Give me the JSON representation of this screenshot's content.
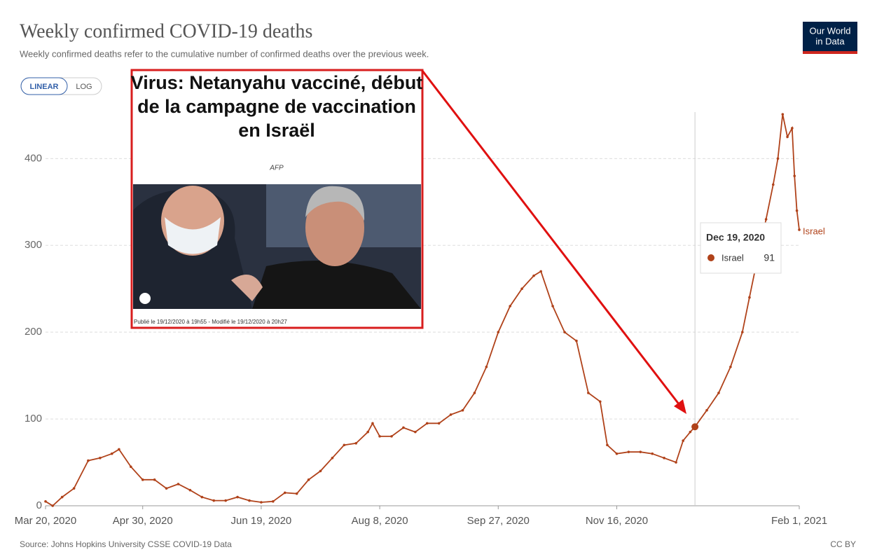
{
  "chart_data": {
    "type": "line",
    "title": "Weekly confirmed COVID-19 deaths",
    "subtitle": "Weekly confirmed deaths refer to the cumulative number of confirmed deaths over the previous week.",
    "x": [
      "2020-03-20",
      "2020-03-23",
      "2020-03-27",
      "2020-04-01",
      "2020-04-07",
      "2020-04-12",
      "2020-04-17",
      "2020-04-20",
      "2020-04-25",
      "2020-04-30",
      "2020-05-05",
      "2020-05-10",
      "2020-05-15",
      "2020-05-20",
      "2020-05-25",
      "2020-05-30",
      "2020-06-04",
      "2020-06-09",
      "2020-06-14",
      "2020-06-19",
      "2020-06-24",
      "2020-06-29",
      "2020-07-04",
      "2020-07-09",
      "2020-07-14",
      "2020-07-19",
      "2020-07-24",
      "2020-07-29",
      "2020-08-03",
      "2020-08-05",
      "2020-08-08",
      "2020-08-13",
      "2020-08-18",
      "2020-08-23",
      "2020-08-28",
      "2020-09-02",
      "2020-09-07",
      "2020-09-12",
      "2020-09-17",
      "2020-09-22",
      "2020-09-27",
      "2020-10-02",
      "2020-10-07",
      "2020-10-12",
      "2020-10-15",
      "2020-10-20",
      "2020-10-25",
      "2020-10-30",
      "2020-11-04",
      "2020-11-09",
      "2020-11-12",
      "2020-11-16",
      "2020-11-21",
      "2020-11-26",
      "2020-12-01",
      "2020-12-06",
      "2020-12-11",
      "2020-12-14",
      "2020-12-17",
      "2020-12-19",
      "2020-12-24",
      "2020-12-29",
      "2021-01-03",
      "2021-01-08",
      "2021-01-11",
      "2021-01-14",
      "2021-01-18",
      "2021-01-21",
      "2021-01-23",
      "2021-01-25",
      "2021-01-27",
      "2021-01-29",
      "2021-01-30",
      "2021-01-31",
      "2021-02-01"
    ],
    "series": [
      {
        "name": "Israel",
        "color": "#b0421a",
        "values": [
          5,
          0,
          10,
          20,
          52,
          55,
          60,
          65,
          45,
          30,
          30,
          20,
          25,
          18,
          10,
          6,
          6,
          10,
          6,
          4,
          5,
          15,
          14,
          30,
          40,
          55,
          70,
          72,
          85,
          95,
          80,
          80,
          90,
          85,
          95,
          95,
          105,
          110,
          130,
          160,
          200,
          230,
          250,
          265,
          270,
          230,
          200,
          190,
          130,
          120,
          70,
          60,
          62,
          62,
          60,
          55,
          50,
          75,
          85,
          91,
          110,
          130,
          160,
          200,
          240,
          280,
          330,
          370,
          400,
          451,
          425,
          435,
          380,
          340,
          318
        ]
      }
    ],
    "xlim": [
      "2020-03-20",
      "2021-02-01"
    ],
    "xticks": [
      {
        "value": "2020-03-20",
        "label": "Mar 20, 2020"
      },
      {
        "value": "2020-04-30",
        "label": "Apr 30, 2020"
      },
      {
        "value": "2020-06-19",
        "label": "Jun 19, 2020"
      },
      {
        "value": "2020-08-08",
        "label": "Aug 8, 2020"
      },
      {
        "value": "2020-09-27",
        "label": "Sep 27, 2020"
      },
      {
        "value": "2020-11-16",
        "label": "Nov 16, 2020"
      },
      {
        "value": "2021-02-01",
        "label": "Feb 1, 2021"
      }
    ],
    "ylim": [
      0,
      460
    ],
    "yticks": [
      0,
      100,
      200,
      300,
      400
    ],
    "grid": true
  },
  "tooltip": {
    "date": "Dec 19, 2020"
  },
  "source": "Source: Johns Hopkins University CSSE COVID-19 Data",
  "license": "CC BY",
  "logo": [
    "Our World",
    "in Data"
  ],
  "buttons": [
    "LINEAR",
    "LOG"
  ],
  "article": {
    "title": [
      "Virus: Netanyahu vacciné, début",
      "de la campagne de vaccination",
      "en Israël"
    ],
    "agency": "AFP",
    "published": "Publié le 19/12/2020 à 19h55 - Modifié le 19/12/2020 à 20h27"
  }
}
